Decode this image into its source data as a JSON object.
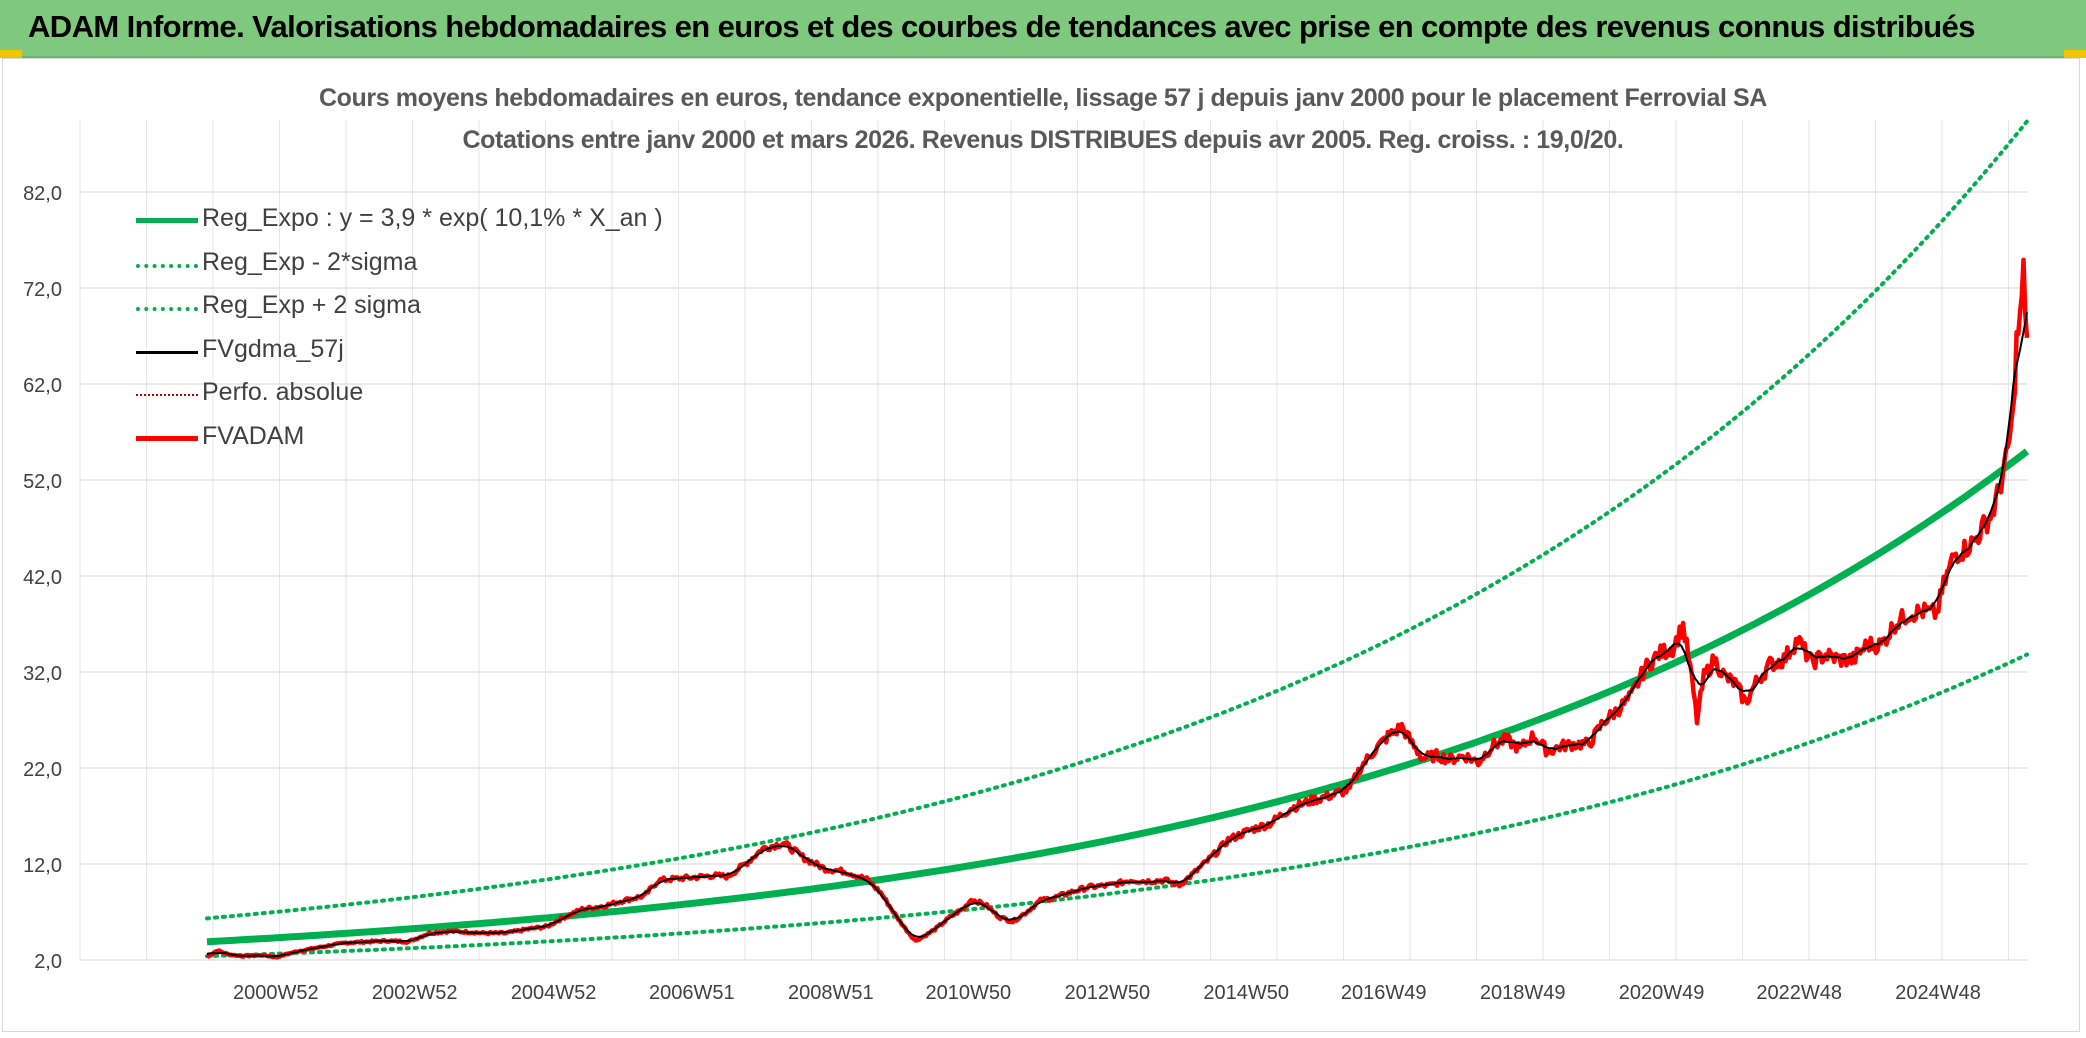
{
  "banner": {
    "title": "ADAM Informe. Valorisations hebdomadaires en euros et des courbes de tendances avec prise en compte des revenus connus distribués"
  },
  "chart_data": {
    "type": "line",
    "title_line1": "Cours moyens hebdomadaires en euros, tendance exponentielle, lissage 57 j depuis janv 2000 pour le placement Ferrovial SA",
    "title_line2": "Cotations entre janv 2000 et mars 2026. Revenus DISTRIBUES depuis avr 2005. Reg. croiss. : 19,0/20.",
    "y_ticks": [
      "2,0",
      "12,0",
      "22,0",
      "32,0",
      "42,0",
      "52,0",
      "62,0",
      "72,0",
      "82,0"
    ],
    "ylim": [
      2,
      82
    ],
    "x_ticks": [
      "2000W52",
      "2002W52",
      "2004W52",
      "2006W51",
      "2008W51",
      "2010W50",
      "2012W50",
      "2014W50",
      "2016W49",
      "2018W49",
      "2020W49",
      "2022W48",
      "2024W48"
    ],
    "x_tick_years": [
      2000.99,
      2002.99,
      2004.99,
      2006.98,
      2008.98,
      2010.96,
      2012.96,
      2014.96,
      2016.94,
      2018.94,
      2020.94,
      2022.92,
      2024.92
    ],
    "xlim": [
      2000.0,
      2026.2
    ],
    "grid": true,
    "legend_position": "top-left",
    "colors": {
      "trend": "#00b050",
      "smooth": "#000000",
      "price": "#ff0000",
      "perf": "#c00000"
    },
    "series": [
      {
        "name": "Reg_Expo : y = 3,9 * exp( 10,1% *  X_an )",
        "style": "solid-thick",
        "color": "#00b050",
        "params": {
          "a": 3.9,
          "rate": 0.101,
          "start": 2000.0
        }
      },
      {
        "name": "Reg_Exp - 2*sigma",
        "style": "dotted",
        "color": "#00b050",
        "params": {
          "factor": 0.615
        }
      },
      {
        "name": "Reg_Exp + 2 sigma",
        "style": "dotted",
        "color": "#00b050",
        "params": {
          "factor": 1.625
        }
      },
      {
        "name": "FVgdma_57j",
        "style": "solid",
        "color": "#000000"
      },
      {
        "name": "Perfo. absolue",
        "style": "dotted-thin",
        "color": "#c00000"
      },
      {
        "name": "FVADAM",
        "style": "solid-thick",
        "color": "#ff0000",
        "points": [
          [
            2000.0,
            2.3
          ],
          [
            2000.15,
            3.0
          ],
          [
            2000.3,
            2.6
          ],
          [
            2000.5,
            2.4
          ],
          [
            2000.8,
            2.5
          ],
          [
            2001.0,
            2.3
          ],
          [
            2001.3,
            2.9
          ],
          [
            2001.6,
            3.3
          ],
          [
            2002.0,
            3.8
          ],
          [
            2002.3,
            3.9
          ],
          [
            2002.6,
            4.0
          ],
          [
            2002.9,
            3.9
          ],
          [
            2003.2,
            4.8
          ],
          [
            2003.5,
            5.0
          ],
          [
            2003.8,
            4.9
          ],
          [
            2004.0,
            4.8
          ],
          [
            2004.3,
            4.8
          ],
          [
            2004.6,
            5.2
          ],
          [
            2004.9,
            5.5
          ],
          [
            2005.1,
            6.3
          ],
          [
            2005.4,
            7.3
          ],
          [
            2005.7,
            7.6
          ],
          [
            2006.0,
            8.2
          ],
          [
            2006.3,
            8.7
          ],
          [
            2006.5,
            10.3
          ],
          [
            2006.8,
            10.5
          ],
          [
            2007.0,
            10.6
          ],
          [
            2007.3,
            10.8
          ],
          [
            2007.5,
            10.7
          ],
          [
            2007.8,
            12.3
          ],
          [
            2008.0,
            13.6
          ],
          [
            2008.3,
            14.2
          ],
          [
            2008.6,
            12.6
          ],
          [
            2008.9,
            11.5
          ],
          [
            2009.2,
            11.2
          ],
          [
            2009.5,
            10.4
          ],
          [
            2009.7,
            9.0
          ],
          [
            2009.9,
            6.8
          ],
          [
            2010.05,
            5.3
          ],
          [
            2010.2,
            4.0
          ],
          [
            2010.35,
            4.6
          ],
          [
            2010.5,
            5.3
          ],
          [
            2010.7,
            6.5
          ],
          [
            2010.9,
            7.4
          ],
          [
            2011.0,
            8.3
          ],
          [
            2011.2,
            7.8
          ],
          [
            2011.4,
            6.5
          ],
          [
            2011.6,
            6.0
          ],
          [
            2011.8,
            7.0
          ],
          [
            2012.0,
            8.2
          ],
          [
            2012.2,
            8.5
          ],
          [
            2012.5,
            9.2
          ],
          [
            2012.7,
            9.6
          ],
          [
            2013.0,
            9.8
          ],
          [
            2013.3,
            10.3
          ],
          [
            2013.5,
            10.2
          ],
          [
            2013.8,
            10.3
          ],
          [
            2014.0,
            9.8
          ],
          [
            2014.2,
            11.0
          ],
          [
            2014.5,
            13.0
          ],
          [
            2014.7,
            14.5
          ],
          [
            2015.0,
            15.5
          ],
          [
            2015.3,
            16.2
          ],
          [
            2015.6,
            17.8
          ],
          [
            2015.9,
            18.6
          ],
          [
            2016.2,
            19.2
          ],
          [
            2016.45,
            19.8
          ],
          [
            2016.6,
            22.0
          ],
          [
            2016.8,
            23.8
          ],
          [
            2017.0,
            25.3
          ],
          [
            2017.2,
            26.3
          ],
          [
            2017.35,
            24.5
          ],
          [
            2017.5,
            23.0
          ],
          [
            2017.7,
            23.3
          ],
          [
            2017.9,
            22.9
          ],
          [
            2018.1,
            23.3
          ],
          [
            2018.3,
            22.6
          ],
          [
            2018.5,
            24.3
          ],
          [
            2018.7,
            25.0
          ],
          [
            2018.9,
            24.0
          ],
          [
            2019.1,
            25.4
          ],
          [
            2019.3,
            23.7
          ],
          [
            2019.5,
            24.3
          ],
          [
            2019.7,
            24.5
          ],
          [
            2019.9,
            24.5
          ],
          [
            2020.1,
            26.8
          ],
          [
            2020.3,
            28.0
          ],
          [
            2020.5,
            29.4
          ],
          [
            2020.7,
            32.4
          ],
          [
            2020.9,
            33.9
          ],
          [
            2021.1,
            34.5
          ],
          [
            2021.25,
            36.8
          ],
          [
            2021.35,
            32.5
          ],
          [
            2021.45,
            27.0
          ],
          [
            2021.55,
            31.5
          ],
          [
            2021.7,
            33.3
          ],
          [
            2021.85,
            31.5
          ],
          [
            2022.0,
            30.8
          ],
          [
            2022.15,
            28.8
          ],
          [
            2022.3,
            30.9
          ],
          [
            2022.5,
            32.8
          ],
          [
            2022.7,
            33.3
          ],
          [
            2022.9,
            35.4
          ],
          [
            2023.1,
            33.0
          ],
          [
            2023.3,
            33.8
          ],
          [
            2023.5,
            33.3
          ],
          [
            2023.7,
            33.3
          ],
          [
            2023.9,
            34.9
          ],
          [
            2024.1,
            34.8
          ],
          [
            2024.3,
            37.0
          ],
          [
            2024.5,
            38.1
          ],
          [
            2024.7,
            38.3
          ],
          [
            2024.9,
            38.1
          ],
          [
            2025.0,
            41.0
          ],
          [
            2025.15,
            44.2
          ],
          [
            2025.3,
            44.8
          ],
          [
            2025.45,
            45.7
          ],
          [
            2025.6,
            47.5
          ],
          [
            2025.7,
            48.5
          ],
          [
            2025.8,
            51.0
          ],
          [
            2025.9,
            54.0
          ],
          [
            2026.0,
            58.7
          ],
          [
            2026.05,
            66.5
          ],
          [
            2026.1,
            68.5
          ],
          [
            2026.15,
            73.5
          ],
          [
            2026.2,
            66.8
          ]
        ]
      }
    ]
  }
}
